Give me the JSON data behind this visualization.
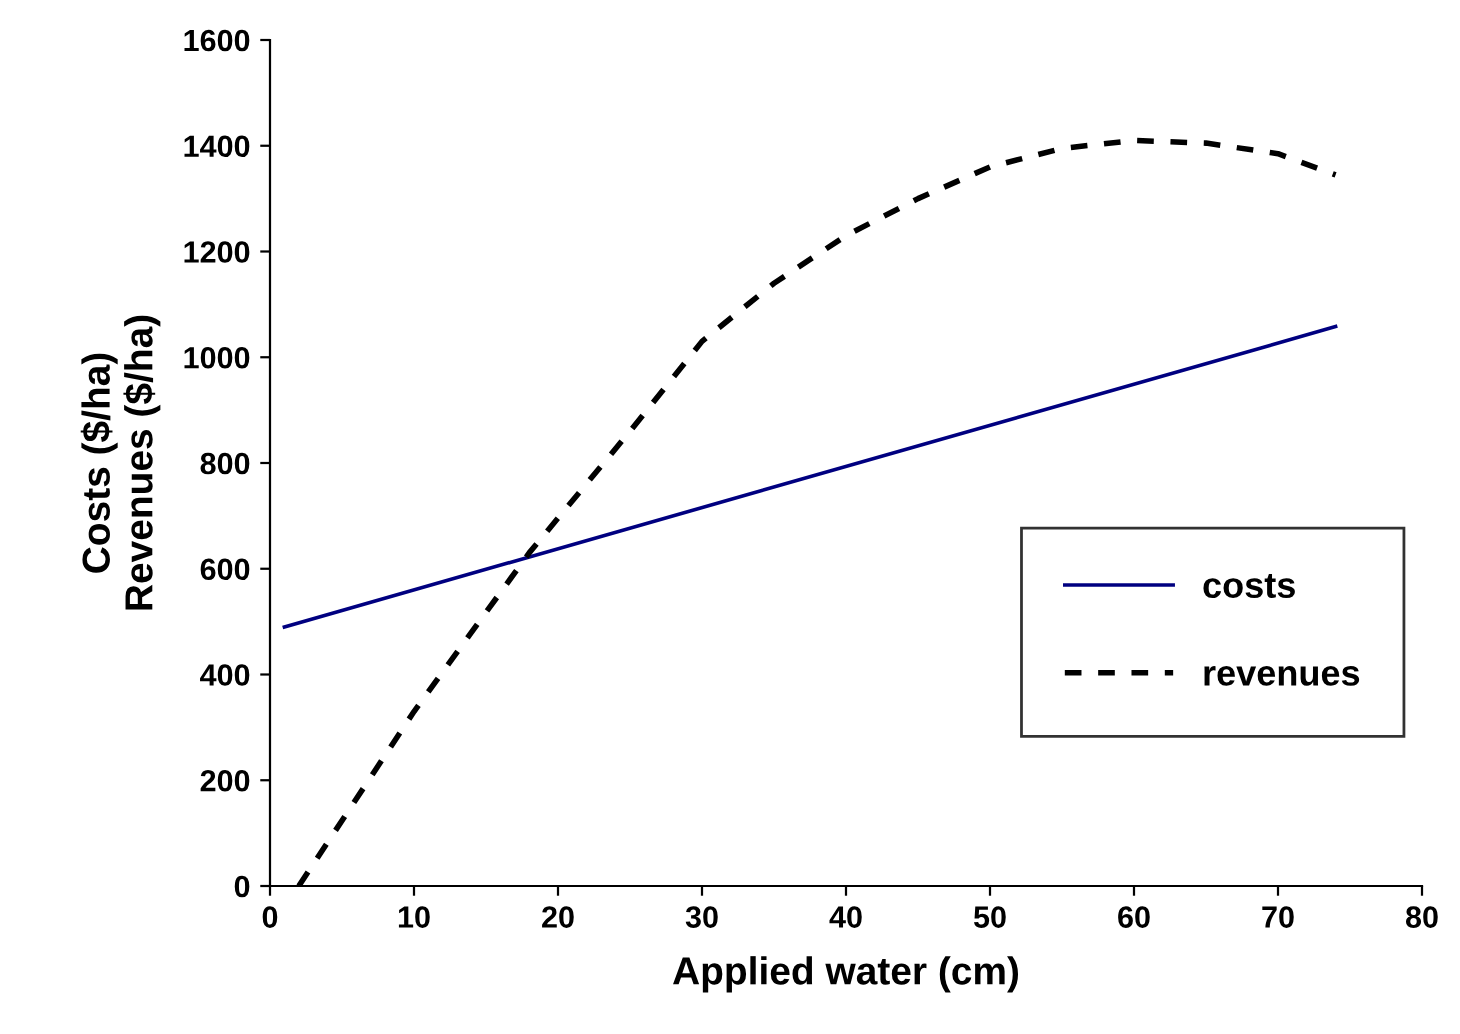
{
  "chart_data": {
    "type": "line",
    "xlabel": "Applied water (cm)",
    "ylabel": "Costs ($/ha)\nRevenues ($/ha)",
    "xlim": [
      0,
      80
    ],
    "ylim": [
      0,
      1600
    ],
    "xticks": [
      0,
      10,
      20,
      30,
      40,
      50,
      60,
      70,
      80
    ],
    "yticks": [
      0,
      200,
      400,
      600,
      800,
      1000,
      1200,
      1400,
      1600
    ],
    "grid": false,
    "legend": "right",
    "marker": "none",
    "series": [
      {
        "name": "costs",
        "color": "#000080",
        "line_style": "solid",
        "x": [
          1,
          74
        ],
        "values": [
          490,
          1058
        ]
      },
      {
        "name": "revenues",
        "color": "#000000",
        "line_style": "dashed",
        "x": [
          2,
          10,
          18,
          25,
          30,
          35,
          40,
          45,
          50,
          55,
          60,
          65,
          70,
          74
        ],
        "values": [
          0,
          330,
          630,
          860,
          1030,
          1140,
          1230,
          1300,
          1360,
          1395,
          1410,
          1405,
          1385,
          1345
        ]
      }
    ]
  }
}
